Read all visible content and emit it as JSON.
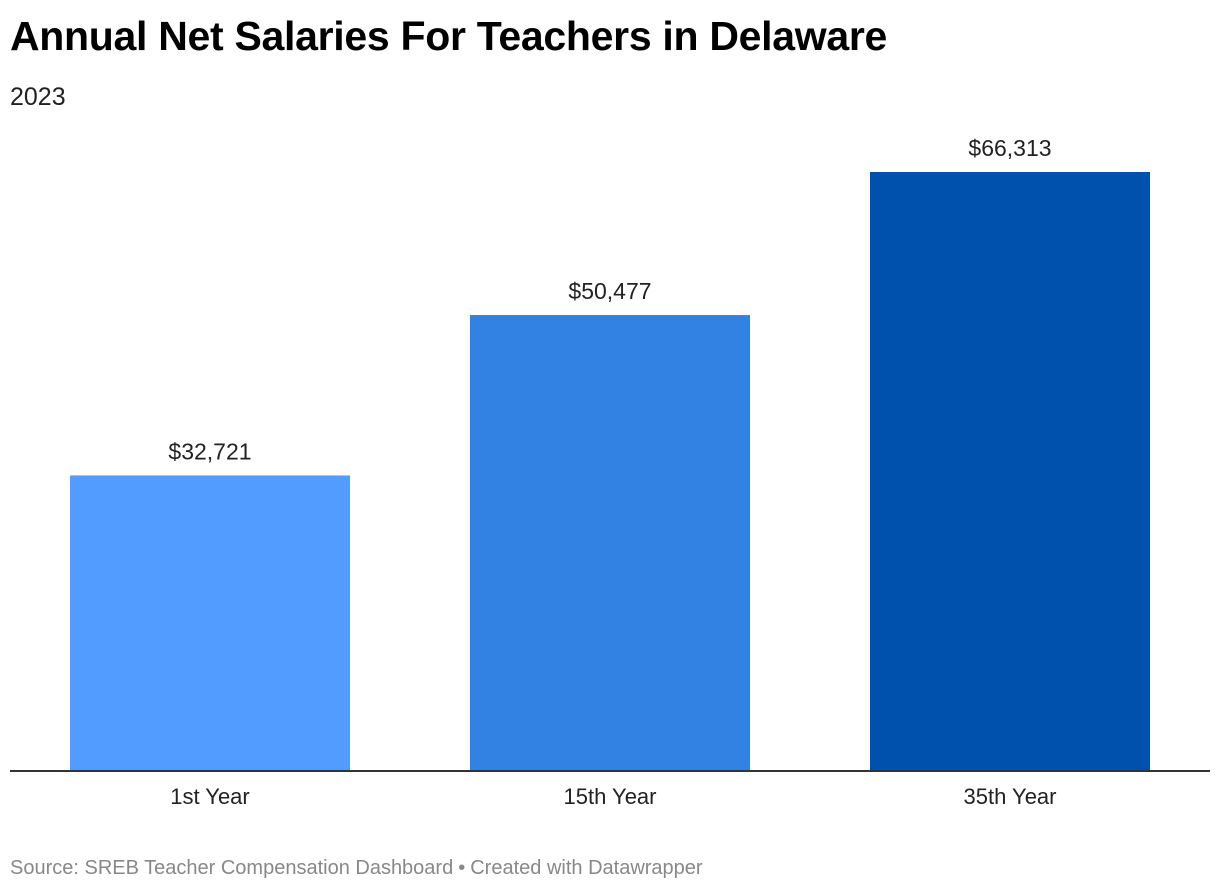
{
  "header": {
    "title": "Annual Net Salaries For Teachers in Delaware",
    "subtitle": "2023"
  },
  "footer": {
    "source": "Source: SREB Teacher Compensation Dashboard",
    "separator": "•",
    "credit": "Created with Datawrapper"
  },
  "chart_data": {
    "type": "bar",
    "title": "Annual Net Salaries For Teachers in Delaware",
    "subtitle": "2023",
    "categories": [
      "1st Year",
      "15th Year",
      "35th Year"
    ],
    "values": [
      32721,
      50477,
      66313
    ],
    "value_labels": [
      "$32,721",
      "$50,477",
      "$66,313"
    ],
    "colors": [
      "#529cff",
      "#3182e2",
      "#0051ad"
    ],
    "xlabel": "",
    "ylabel": "",
    "ylim": [
      0,
      66313
    ],
    "grid": false,
    "legend": "none",
    "axis_color": "#333333"
  }
}
